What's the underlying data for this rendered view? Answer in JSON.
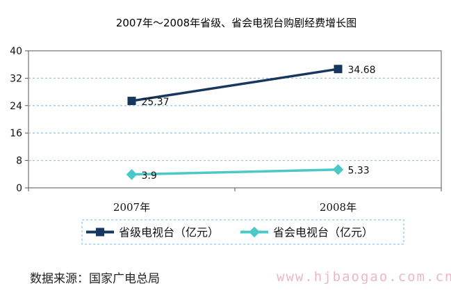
{
  "chart_data": {
    "type": "line",
    "title": "2007年～2008年省级、省会电视台购剧经费增长图",
    "categories": [
      "2007年",
      "2008年"
    ],
    "series": [
      {
        "name": "省级电视台（亿元）",
        "values": [
          25.37,
          34.68
        ],
        "labels": [
          "25.37",
          "34.68"
        ],
        "color": "#17375e",
        "marker": "square"
      },
      {
        "name": "省会电视台（亿元）",
        "values": [
          3.9,
          5.33
        ],
        "labels": [
          "3.9",
          "5.33"
        ],
        "color": "#4bc8c8",
        "marker": "diamond"
      }
    ],
    "ylim": [
      0,
      40
    ],
    "yticks": [
      0,
      8,
      16,
      24,
      32,
      40
    ],
    "grid": true,
    "legend": "bottom"
  },
  "source": "数据来源：国家广电总局",
  "watermark": "www.hjbaogao.com.cn"
}
